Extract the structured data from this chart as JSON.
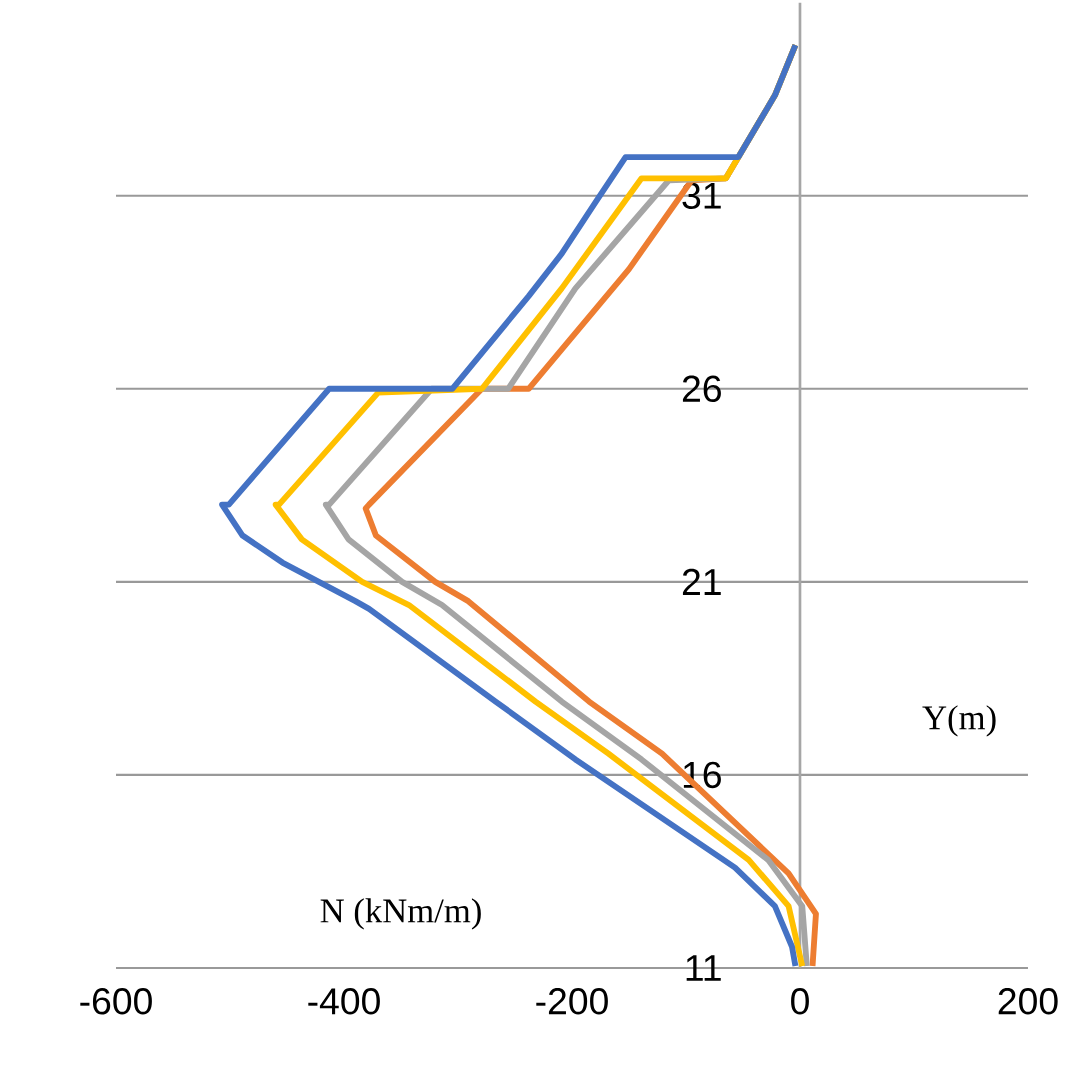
{
  "chart_data": {
    "type": "line",
    "xlabel": "N (kNm/m)",
    "ylabel": "Y(m)",
    "xlim": [
      -600,
      200
    ],
    "xticks": [
      -600,
      -400,
      -200,
      0,
      200
    ],
    "ylim": [
      11,
      36
    ],
    "yticks": [
      11,
      16,
      21,
      26,
      31
    ],
    "grid": "y",
    "marker": "none",
    "line_style": "solid",
    "series": [
      {
        "color": "#ed7d31",
        "x": [
          -4,
          -22,
          -65,
          -95,
          -150,
          -238,
          -279,
          -378,
          -381,
          -372,
          -320,
          -291,
          -185,
          -121,
          -10,
          14,
          11
        ],
        "values": [
          34.9,
          33.6,
          31.45,
          31.4,
          29.1,
          26.0,
          26.0,
          23.0,
          22.9,
          22.2,
          21.0,
          20.5,
          17.9,
          16.55,
          13.45,
          12.4,
          11.05
        ]
      },
      {
        "color": "#a5a5a5",
        "x": [
          -4,
          -22,
          -65,
          -115,
          -197,
          -256,
          -323,
          -413,
          -416,
          -396,
          -349,
          -314,
          -209,
          -139,
          -28,
          2,
          6
        ],
        "values": [
          34.9,
          33.6,
          31.45,
          31.4,
          28.6,
          26.0,
          26.0,
          23.0,
          23.0,
          22.1,
          21.0,
          20.4,
          17.9,
          16.4,
          13.8,
          12.6,
          11.05
        ]
      },
      {
        "color": "#ffc000",
        "x": [
          -4,
          -22,
          -65,
          -139,
          -209,
          -279,
          -370,
          -457,
          -460,
          -437,
          -384,
          -343,
          -232,
          -168,
          -45,
          -10,
          2
        ],
        "values": [
          34.9,
          33.6,
          31.45,
          31.45,
          28.6,
          26.0,
          25.9,
          23.0,
          23.0,
          22.1,
          21.0,
          20.4,
          17.9,
          16.55,
          13.8,
          12.6,
          11.05
        ]
      },
      {
        "color": "#4472c4",
        "x": [
          -4,
          -22,
          -54,
          -153,
          -179,
          -209,
          -238,
          -305,
          -413,
          -501,
          -507,
          -489,
          -454,
          -390,
          -378,
          -267,
          -197,
          -57,
          -22,
          -7,
          -4
        ],
        "values": [
          34.9,
          33.6,
          32.0,
          32.0,
          30.85,
          29.5,
          28.4,
          26.0,
          26.0,
          23.0,
          23.0,
          22.2,
          21.5,
          20.5,
          20.3,
          17.9,
          16.4,
          13.6,
          12.6,
          11.55,
          11.05
        ]
      }
    ]
  }
}
